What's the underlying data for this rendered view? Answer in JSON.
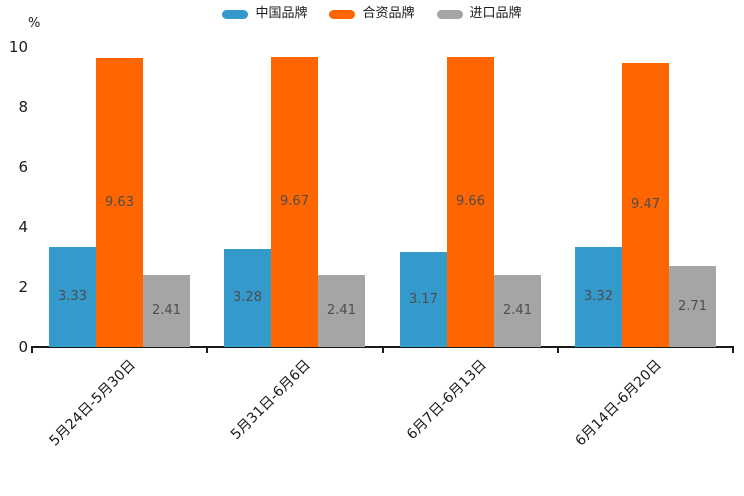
{
  "chart_data": {
    "type": "bar",
    "title": "",
    "ylabel": "%",
    "xlabel": "",
    "ylim": [
      0,
      10
    ],
    "yticks": [
      0,
      2,
      4,
      6,
      8,
      10
    ],
    "grid": false,
    "legend_position": "top",
    "value_labels": true,
    "value_label_color": "#4d4d4d",
    "categories": [
      "5月24日-5月30日",
      "5月31日-6月6日",
      "6月7日-6月13日",
      "6月14日-6月20日"
    ],
    "series": [
      {
        "name": "中国品牌",
        "color": "#3499cb",
        "values": [
          3.33,
          3.28,
          3.17,
          3.32
        ]
      },
      {
        "name": "合资品牌",
        "color": "#ff6600",
        "values": [
          9.63,
          9.67,
          9.66,
          9.47
        ]
      },
      {
        "name": "进口品牌",
        "color": "#a5a5a5",
        "values": [
          2.41,
          2.41,
          2.41,
          2.71
        ]
      }
    ]
  }
}
